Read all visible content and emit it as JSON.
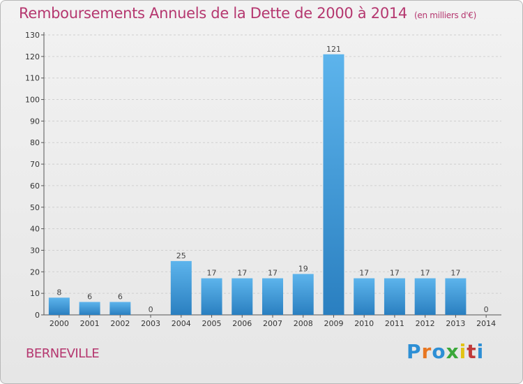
{
  "header": {
    "title": "Remboursements Annuels de la Dette de 2000 à 2014",
    "unit": "(en milliers d'€)"
  },
  "footer": {
    "commune": "BERNEVILLE",
    "logo_letters": [
      "P",
      "r",
      "o",
      "x",
      "i",
      "t",
      "i"
    ],
    "logo_colors": [
      "#2d8fd5",
      "#e87722",
      "#2d8fd5",
      "#3aa83a",
      "#e2c312",
      "#c03a3a",
      "#2d8fd5"
    ]
  },
  "colors": {
    "title": "#b5376f",
    "bar_top": "#5db4ec",
    "bar_bottom": "#2a7fc0",
    "grid": "#cfcfcf"
  },
  "chart_data": {
    "type": "bar",
    "title": "Remboursements Annuels de la Dette de 2000 à 2014",
    "subtitle": "(en milliers d'€)",
    "categories": [
      "2000",
      "2001",
      "2002",
      "2003",
      "2004",
      "2005",
      "2006",
      "2007",
      "2008",
      "2009",
      "2010",
      "2011",
      "2012",
      "2013",
      "2014"
    ],
    "values": [
      8,
      6,
      6,
      0,
      25,
      17,
      17,
      17,
      19,
      121,
      17,
      17,
      17,
      17,
      0
    ],
    "y_ticks": [
      0,
      10,
      20,
      30,
      40,
      50,
      60,
      70,
      80,
      90,
      100,
      110,
      120,
      130
    ],
    "ylim": [
      0,
      130
    ],
    "grid": true,
    "xlabel": "",
    "ylabel": ""
  }
}
